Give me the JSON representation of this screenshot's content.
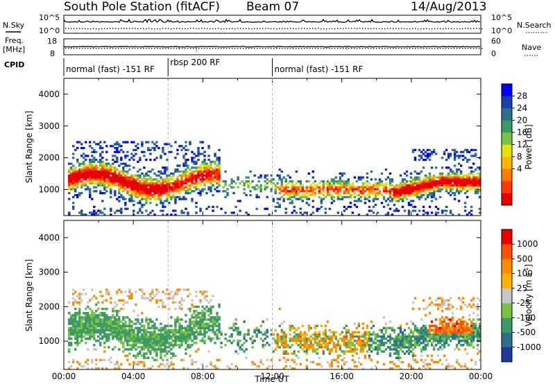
{
  "header": {
    "station": "South Pole Station (fitACF)",
    "beam": "Beam 07",
    "date": "14/Aug/2013"
  },
  "top_panels": {
    "nsky_label": "N.Sky",
    "nsky_ticks": [
      "10^5",
      "10^0"
    ],
    "nsearch_label": "N.Search",
    "nsearch_ticks": [
      "10^5",
      "10^0"
    ],
    "freq_label_1": "Freq.",
    "freq_label_2": "[MHz]",
    "freq_ticks": [
      "18",
      "8"
    ],
    "nave_label": "Nave",
    "nave_ticks": [
      "60",
      "0"
    ],
    "cpid_label": "CPID",
    "cpid_segments": [
      {
        "label": "normal (fast) -151 RF",
        "start": 0,
        "end": 6
      },
      {
        "label": "rbsp 200 RF",
        "start": 6,
        "end": 12
      },
      {
        "label": "normal (fast) -151 RF",
        "start": 12,
        "end": 24
      }
    ]
  },
  "chart_data": [
    {
      "type": "heatmap",
      "panel": "power",
      "ylabel": "Slant Range [km]",
      "ylim": [
        180,
        4500
      ],
      "yticks": [
        "4000",
        "3000",
        "2000",
        "1000"
      ],
      "colorbar_label": "Power [dB]",
      "colorbar_ticks": [
        "28",
        "24",
        "20",
        "16",
        "12",
        "8",
        "4"
      ],
      "colorbar_colors": [
        "#0000ff",
        "#1b3fa8",
        "#2e6f8f",
        "#3c9a66",
        "#7cc242",
        "#e8e000",
        "#ffb400",
        "#ff7a00",
        "#ff3a00",
        "#e60000"
      ],
      "xlim": [
        0,
        24
      ]
    },
    {
      "type": "heatmap",
      "panel": "velocity",
      "ylabel": "Slant Range [km]",
      "ylim": [
        180,
        4500
      ],
      "yticks": [
        "4000",
        "3000",
        "2000",
        "1000"
      ],
      "xlabel": "Time UT",
      "xticks": [
        "00:00",
        "04:00",
        "08:00",
        "12:00",
        "16:00",
        "20:00",
        "00:00"
      ],
      "colorbar_label": "Velocity [m s",
      "colorbar_exp": "-1",
      "colorbar_suffix": "]",
      "colorbar_ticks": [
        "1000",
        "500",
        "100",
        "25",
        "-25",
        "-100",
        "-500",
        "-1000"
      ],
      "colorbar_colors": [
        "#1f3a9e",
        "#2e6f8f",
        "#3c9a66",
        "#7cc242",
        "#c8c8c8",
        "#ffb000",
        "#ff8c00",
        "#ff5000",
        "#e60000"
      ],
      "xlim": [
        0,
        24
      ]
    }
  ]
}
